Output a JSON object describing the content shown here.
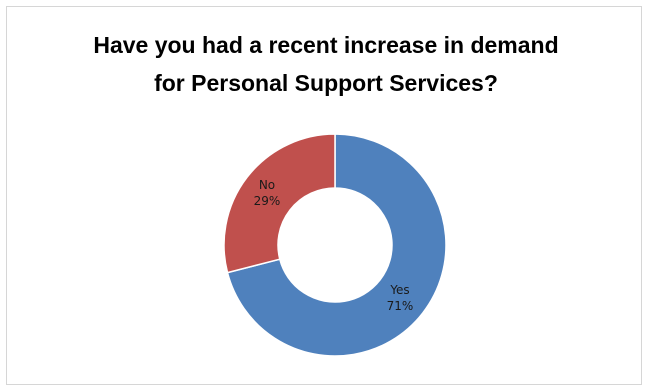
{
  "chart_data": {
    "type": "pie",
    "title": [
      "Have you had a recent increase in demand",
      "for Personal Support Services?"
    ],
    "categories": [
      "Yes",
      "No"
    ],
    "values": [
      71,
      29
    ],
    "value_labels": [
      "71%",
      "29%"
    ],
    "colors": [
      "#4F81BD",
      "#C0504D"
    ],
    "style": "doughnut",
    "legend": "none"
  }
}
